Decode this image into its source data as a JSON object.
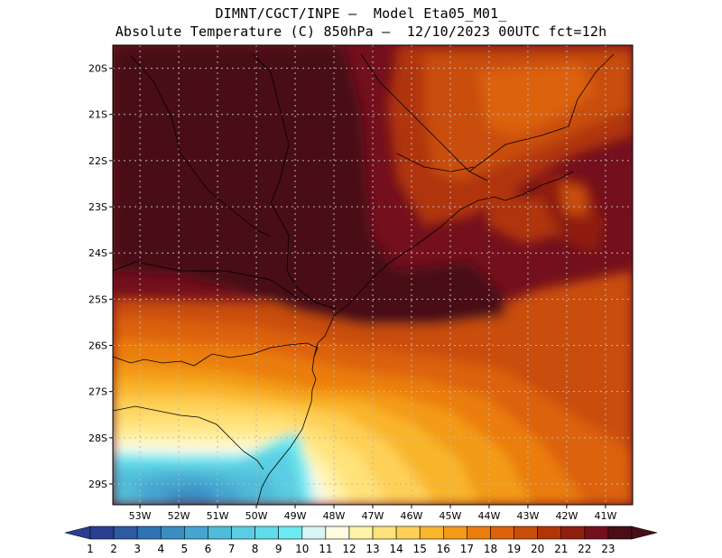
{
  "title": {
    "line1": "DIMNT/CGCT/INPE –  Model Eta05_M01_",
    "line2": "Absolute Temperature (C) 850hPa –  12/10/2023 00UTC fct=12h"
  },
  "map": {
    "variable": "Absolute Temperature",
    "units": "C",
    "level": "850hPa",
    "lon_range": [
      -53.7,
      -40.3
    ],
    "lat_range": [
      -29.45,
      -19.5
    ],
    "lat_labels": [
      "20S",
      "21S",
      "22S",
      "23S",
      "24S",
      "25S",
      "26S",
      "27S",
      "28S",
      "29S"
    ],
    "lat_values": [
      -20,
      -21,
      -22,
      -23,
      -24,
      -25,
      -26,
      -27,
      -28,
      -29
    ],
    "lon_labels": [
      "53W",
      "52W",
      "51W",
      "50W",
      "49W",
      "48W",
      "47W",
      "46W",
      "45W",
      "44W",
      "43W",
      "42W",
      "41W"
    ],
    "lon_values": [
      -53,
      -52,
      -51,
      -50,
      -49,
      -48,
      -47,
      -46,
      -45,
      -44,
      -43,
      -42,
      -41
    ]
  },
  "colorbar": {
    "labels": [
      "1",
      "2",
      "3",
      "4",
      "5",
      "6",
      "7",
      "8",
      "9",
      "10",
      "11",
      "12",
      "13",
      "14",
      "15",
      "16",
      "17",
      "18",
      "19",
      "20",
      "21",
      "22",
      "23"
    ],
    "colors": [
      "#2a3f8f",
      "#2d5aa3",
      "#3173b2",
      "#3a8dc2",
      "#44a6d0",
      "#4fbcd9",
      "#5acde2",
      "#62dbe8",
      "#6ceaf1",
      "#d9f4f7",
      "#fffbe0",
      "#fff3a8",
      "#ffe27a",
      "#fed056",
      "#f9b52c",
      "#f39a17",
      "#ea7d0c",
      "#dc620b",
      "#c94d0a",
      "#b03608",
      "#8f1f10",
      "#74101d",
      "#4a0f16"
    ]
  }
}
